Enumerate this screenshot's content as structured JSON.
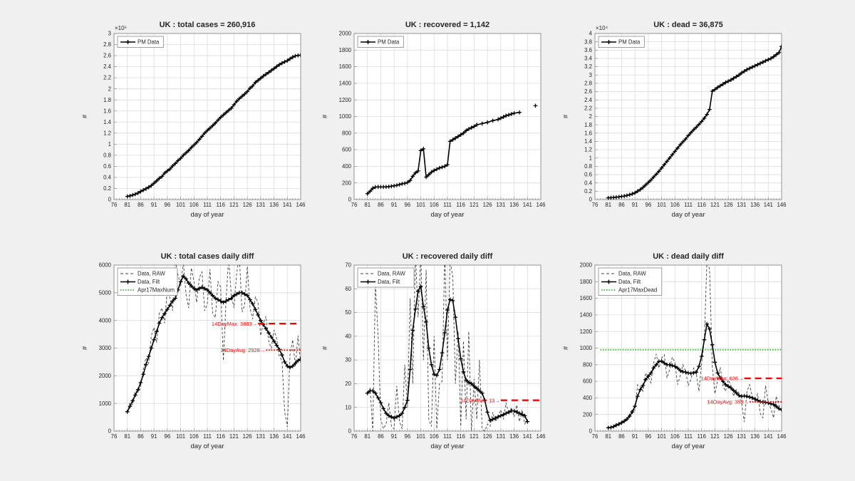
{
  "figure": {
    "background": "#f0f0f0",
    "plot_background": "#ffffff",
    "grid_color": "#dcdcdc",
    "axis_color": "#8c8c8c",
    "text_color": "#262626",
    "raw_color": "#404040",
    "filt_color": "#000000",
    "annotation_red": "#ff0000",
    "reference_green": "#00b900"
  },
  "chart_data": [
    {
      "type": "line",
      "title": "UK : total cases = 260,916",
      "xlabel": "day of year",
      "ylabel": "#",
      "exponent_label": "×10⁵",
      "xlim": [
        76,
        146
      ],
      "xticks": [
        76,
        81,
        86,
        91,
        96,
        101,
        106,
        111,
        116,
        121,
        126,
        131,
        136,
        141,
        146
      ],
      "ylim": [
        0,
        300000
      ],
      "ytick_step": 20000,
      "ytick_divisor": 100000,
      "legend": [
        {
          "label": "PM Data",
          "style": "plus"
        }
      ],
      "series": [
        {
          "name": "PM Data",
          "style": "plus",
          "x_start": 81,
          "y": [
            5700,
            6700,
            8100,
            9600,
            11700,
            14500,
            17100,
            19500,
            22100,
            25200,
            29500,
            33700,
            38200,
            41900,
            47800,
            51600,
            55200,
            60700,
            65100,
            70300,
            74600,
            79900,
            84300,
            88600,
            93900,
            98500,
            103100,
            108700,
            114200,
            120100,
            124700,
            129000,
            133500,
            138100,
            143500,
            148400,
            152800,
            157100,
            161100,
            165200,
            171200,
            177500,
            182300,
            186600,
            190600,
            195000,
            201100,
            205300,
            211400,
            215300,
            219200,
            223100,
            226500,
            229700,
            233200,
            236700,
            240200,
            243700,
            246400,
            248800,
            250900,
            254200,
            257200,
            259500,
            260300,
            260916
          ]
        }
      ],
      "annotations": []
    },
    {
      "type": "line",
      "title": "UK : recovered = 1,142",
      "xlabel": "day of year",
      "ylabel": "#",
      "exponent_label": null,
      "xlim": [
        76,
        146
      ],
      "xticks": [
        76,
        81,
        86,
        91,
        96,
        101,
        106,
        111,
        116,
        121,
        126,
        131,
        136,
        141,
        146
      ],
      "ylim": [
        0,
        2000
      ],
      "ytick_step": 200,
      "ytick_divisor": 1,
      "legend": [
        {
          "label": "PM Data",
          "style": "plus"
        }
      ],
      "series": [
        {
          "name": "PM Data",
          "style": "plus",
          "x": [
            81,
            82,
            83,
            84,
            85,
            86,
            87,
            88,
            89,
            90,
            91,
            92,
            93,
            94,
            95,
            96,
            97,
            98,
            99,
            100,
            101,
            102,
            103,
            104,
            105,
            106,
            107,
            108,
            109,
            110,
            111,
            112,
            113,
            114,
            115,
            116,
            117,
            118,
            119,
            120,
            121,
            122,
            124,
            126,
            128,
            130,
            131,
            132,
            133,
            134,
            135,
            136,
            138
          ],
          "y": [
            70,
            100,
            135,
            150,
            152,
            152,
            152,
            152,
            155,
            160,
            165,
            172,
            180,
            190,
            195,
            205,
            230,
            280,
            320,
            344,
            590,
            610,
            270,
            300,
            330,
            350,
            365,
            380,
            390,
            400,
            420,
            700,
            720,
            740,
            760,
            780,
            800,
            830,
            850,
            865,
            880,
            900,
            915,
            930,
            950,
            965,
            980,
            995,
            1010,
            1020,
            1030,
            1040,
            1050
          ]
        },
        {
          "name": "PM Data (latest point)",
          "style": "plus",
          "x": [
            144
          ],
          "y": [
            1130
          ]
        }
      ],
      "annotations": []
    },
    {
      "type": "line",
      "title": "UK : dead = 36,875",
      "xlabel": "day of year",
      "ylabel": "#",
      "exponent_label": "×10⁴",
      "xlim": [
        76,
        146
      ],
      "xticks": [
        76,
        81,
        86,
        91,
        96,
        101,
        106,
        111,
        116,
        121,
        126,
        131,
        136,
        141,
        146
      ],
      "ylim": [
        0,
        40000
      ],
      "ytick_step": 2000,
      "ytick_divisor": 10000,
      "legend": [
        {
          "label": "PM Data",
          "style": "plus"
        }
      ],
      "series": [
        {
          "name": "PM Data",
          "style": "plus",
          "x_start": 81,
          "y": [
            400,
            450,
            500,
            560,
            640,
            730,
            840,
            980,
            1150,
            1350,
            1600,
            2000,
            2400,
            2900,
            3500,
            4100,
            4700,
            5400,
            6100,
            6800,
            7600,
            8400,
            9200,
            10000,
            10800,
            11600,
            12400,
            13200,
            13900,
            14600,
            15400,
            16100,
            16800,
            17400,
            18100,
            18800,
            19600,
            20500,
            21700,
            26100,
            26500,
            27000,
            27400,
            27800,
            28200,
            28500,
            28800,
            29200,
            29600,
            30000,
            30500,
            30900,
            31300,
            31600,
            31900,
            32200,
            32500,
            32800,
            33100,
            33400,
            33700,
            34000,
            34400,
            34900,
            35400,
            36875
          ]
        }
      ],
      "annotations": []
    },
    {
      "type": "line",
      "title": "UK : total cases daily diff",
      "xlabel": "day of year",
      "ylabel": "#",
      "exponent_label": null,
      "xlim": [
        76,
        146
      ],
      "xticks": [
        76,
        81,
        86,
        91,
        96,
        101,
        106,
        111,
        116,
        121,
        126,
        131,
        136,
        141,
        146
      ],
      "ylim": [
        0,
        6000
      ],
      "ytick_step": 1000,
      "ytick_divisor": 1,
      "legend": [
        {
          "label": "Data, RAW",
          "style": "dashed"
        },
        {
          "label": "Data, Filt",
          "style": "plus"
        },
        {
          "label": "Apr17MaxNum",
          "style": "gdot"
        }
      ],
      "series": [
        {
          "name": "Data, RAW",
          "style": "dashed",
          "x_start": 81,
          "y": [
            650,
            1050,
            950,
            1450,
            1400,
            1600,
            2250,
            2650,
            2450,
            3450,
            3750,
            3200,
            4250,
            4450,
            3900,
            5200,
            4800,
            4350,
            6150,
            5650,
            5250,
            6100,
            4950,
            4450,
            5900,
            5400,
            4650,
            5550,
            5750,
            4350,
            4600,
            5850,
            4250,
            4100,
            5400,
            5200,
            2550,
            4700,
            6250,
            4900,
            4450,
            5700,
            6350,
            4300,
            4550,
            5950,
            4450,
            4050,
            4850,
            4650,
            3450,
            3900,
            4150,
            3250,
            3000,
            3650,
            3350,
            2700,
            2550,
            700,
            150,
            2750,
            3300,
            2350,
            3450,
            2450
          ]
        },
        {
          "name": "Data, Filt",
          "style": "plus",
          "x_start": 81,
          "y": [
            700,
            900,
            1100,
            1300,
            1500,
            1750,
            2050,
            2400,
            2700,
            3000,
            3300,
            3600,
            3900,
            4100,
            4250,
            4400,
            4550,
            4700,
            4800,
            5100,
            5400,
            5600,
            5500,
            5350,
            5250,
            5150,
            5100,
            5150,
            5200,
            5150,
            5100,
            5000,
            4900,
            4800,
            4750,
            4700,
            4650,
            4700,
            4750,
            4800,
            4900,
            4950,
            5000,
            5000,
            4950,
            4900,
            4750,
            4600,
            4400,
            4200,
            4000,
            3850,
            3700,
            3550,
            3400,
            3250,
            3100,
            2950,
            2750,
            2500,
            2350,
            2300,
            2350,
            2450,
            2550,
            2600
          ]
        }
      ],
      "reference_line": {
        "label": "Apr17MaxNum",
        "y": null
      },
      "annotations": [
        {
          "label": "14DayMax: 3883",
          "arrow": "→",
          "y": 3883,
          "line_style": "dashed",
          "x_from": 130,
          "x_to": 146
        },
        {
          "label": "14DayAvg: 2928",
          "arrow": "→",
          "y": 2928,
          "line_style": "dotted",
          "x_from": 133,
          "x_to": 146
        }
      ]
    },
    {
      "type": "line",
      "title": "UK : recovered daily diff",
      "xlabel": "day of year",
      "ylabel": "#",
      "exponent_label": null,
      "xlim": [
        76,
        146
      ],
      "xticks": [
        76,
        81,
        86,
        91,
        96,
        101,
        106,
        111,
        116,
        121,
        126,
        131,
        136,
        141,
        146
      ],
      "ylim": [
        0,
        70
      ],
      "ytick_step": 10,
      "ytick_divisor": 1,
      "legend": [
        {
          "label": "Data, RAW",
          "style": "dashed"
        },
        {
          "label": "Data, Filt",
          "style": "plus"
        }
      ],
      "series": [
        {
          "name": "Data, RAW",
          "style": "dashed",
          "x_start": 81,
          "y": [
            16,
            18,
            0,
            62,
            40,
            5,
            1,
            3,
            12,
            2,
            1,
            19,
            4,
            1,
            28,
            10,
            56,
            20,
            75,
            48,
            75,
            30,
            68,
            5,
            2,
            40,
            1,
            20,
            21,
            75,
            30,
            72,
            65,
            20,
            42,
            2,
            38,
            5,
            42,
            0,
            22,
            5,
            30,
            1,
            0,
            3,
            2,
            8,
            4,
            6,
            9,
            5,
            12,
            7,
            10,
            6,
            11,
            4,
            9,
            3,
            5
          ]
        },
        {
          "name": "Data, Filt",
          "style": "plus",
          "x_start": 81,
          "y": [
            16,
            17,
            17,
            16,
            14,
            12,
            9.5,
            7.5,
            6.5,
            6,
            5.5,
            6,
            6.5,
            7.5,
            10,
            13,
            26,
            42.5,
            51.5,
            59,
            61,
            52.5,
            46,
            35,
            28,
            24,
            23.5,
            26,
            33,
            41.5,
            51,
            55.5,
            55,
            48,
            39,
            30.5,
            25,
            21.5,
            20.5,
            20,
            19,
            18,
            17,
            16,
            13,
            8,
            4.5,
            5,
            5.5,
            6,
            6.5,
            7,
            7.5,
            8,
            8.5,
            8.5,
            8,
            7.5,
            7,
            6.5,
            4
          ]
        }
      ],
      "annotations": [
        {
          "label": "14DayMax: 13",
          "arrow": "→",
          "y": 13,
          "line_style": "dashed",
          "x_from": 131,
          "x_to": 146
        }
      ]
    },
    {
      "type": "line",
      "title": "UK : dead daily diff",
      "xlabel": "day of year",
      "ylabel": "#",
      "exponent_label": null,
      "xlim": [
        76,
        146
      ],
      "xticks": [
        76,
        81,
        86,
        91,
        96,
        101,
        106,
        111,
        116,
        121,
        126,
        131,
        136,
        141,
        146
      ],
      "ylim": [
        0,
        2000
      ],
      "ytick_step": 200,
      "ytick_divisor": 1,
      "legend": [
        {
          "label": "Data, RAW",
          "style": "dashed"
        },
        {
          "label": "Data, Filt",
          "style": "plus"
        },
        {
          "label": "Apr17MaxDead",
          "style": "gdot"
        }
      ],
      "series": [
        {
          "name": "Data, RAW",
          "style": "dashed",
          "x_start": 81,
          "y": [
            35,
            55,
            45,
            90,
            75,
            115,
            140,
            120,
            210,
            260,
            250,
            560,
            540,
            480,
            700,
            650,
            580,
            820,
            930,
            760,
            880,
            920,
            640,
            740,
            890,
            830,
            560,
            670,
            800,
            720,
            550,
            620,
            760,
            690,
            480,
            810,
            1100,
            2050,
            1950,
            780,
            450,
            620,
            770,
            540,
            480,
            620,
            550,
            420,
            500,
            460,
            340,
            110,
            480,
            560,
            420,
            380,
            450,
            210,
            160,
            550,
            340,
            270,
            160,
            420,
            310,
            230
          ]
        },
        {
          "name": "Data, Filt",
          "style": "plus",
          "x_start": 81,
          "y": [
            40,
            45,
            55,
            70,
            85,
            100,
            120,
            145,
            180,
            230,
            300,
            420,
            500,
            550,
            620,
            660,
            700,
            760,
            800,
            840,
            845,
            820,
            800,
            800,
            790,
            780,
            760,
            730,
            715,
            710,
            700,
            695,
            700,
            710,
            780,
            900,
            1100,
            1290,
            1230,
            1040,
            830,
            700,
            640,
            600,
            560,
            540,
            520,
            490,
            460,
            430,
            420,
            425,
            420,
            410,
            400,
            385,
            370,
            355,
            350,
            345,
            340,
            330,
            320,
            300,
            270,
            260
          ]
        }
      ],
      "reference_line": {
        "label": "Apr17MaxDead",
        "y": 980,
        "x_from": 78,
        "x_to": 146
      },
      "annotations": [
        {
          "label": "14DayMax: 636",
          "arrow": "→",
          "y": 636,
          "line_style": "dashed",
          "x_from": 132,
          "x_to": 146
        },
        {
          "label": "14DayAvg: 353",
          "arrow": "→",
          "y": 353,
          "line_style": "dotted",
          "x_from": 134,
          "x_to": 146
        }
      ]
    }
  ]
}
